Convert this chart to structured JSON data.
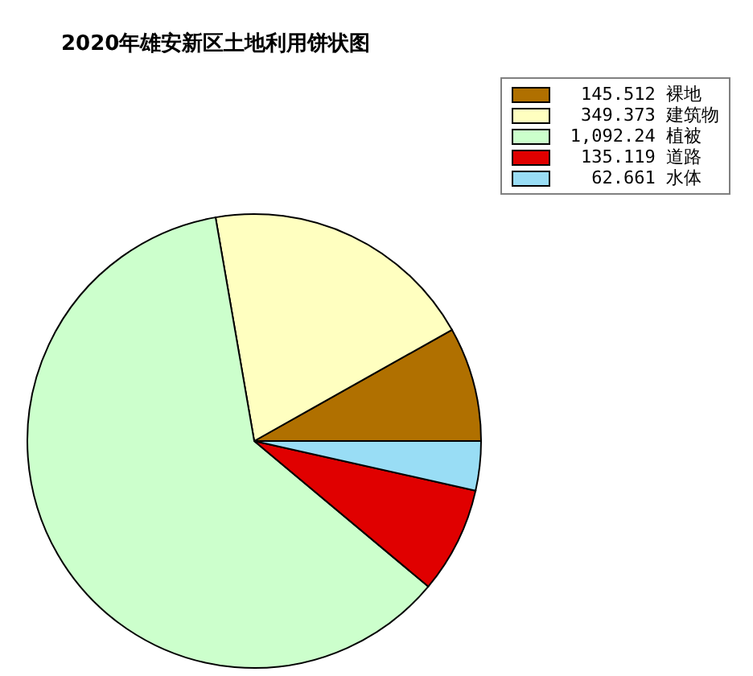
{
  "chart_data": {
    "type": "pie",
    "title": "2020年雄安新区土地利用饼状图",
    "categories": [
      "裸地",
      "建筑物",
      "植被",
      "道路",
      "水体"
    ],
    "values": [
      145.512,
      349.373,
      1092.24,
      135.119,
      62.661
    ],
    "value_labels": [
      "145.512",
      "349.373",
      "1,092.24",
      "135.119",
      "62.661"
    ],
    "colors": [
      "#b07000",
      "#ffffc0",
      "#ccffcc",
      "#e00000",
      "#99ddf5"
    ],
    "legend": "top right"
  }
}
